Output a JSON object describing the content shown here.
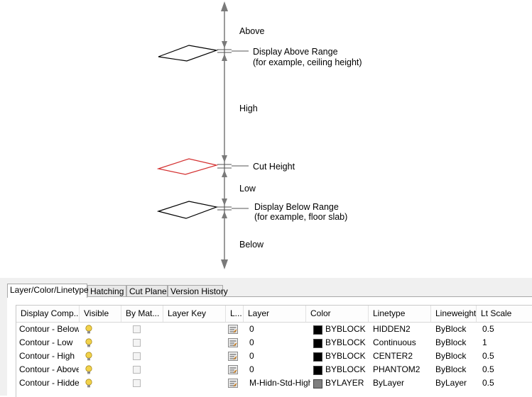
{
  "diagram": {
    "labels": {
      "above": "Above",
      "display_above_range": "Display Above Range",
      "display_above_example": "(for example, ceiling height)",
      "high": "High",
      "cut_height": "Cut Height",
      "low": "Low",
      "display_below_range": "Display Below Range",
      "display_below_example": "(for example, floor slab)",
      "below": "Below"
    },
    "colors": {
      "cut_plane": "#d43030",
      "lines": "#000000",
      "axis": "#7a7a7a"
    }
  },
  "tabs": [
    {
      "label": "Layer/Color/Linetype",
      "active": true
    },
    {
      "label": "Hatching",
      "active": false
    },
    {
      "label": "Cut Plane",
      "active": false
    },
    {
      "label": "Version History",
      "active": false
    }
  ],
  "table": {
    "headers": {
      "display_component": "Display Comp...",
      "visible": "Visible",
      "by_material": "By Mat...",
      "layer_key": "Layer Key",
      "l": "L...",
      "layer": "Layer",
      "color": "Color",
      "linetype": "Linetype",
      "lineweight": "Lineweight",
      "lt_scale": "Lt Scale"
    },
    "rows": [
      {
        "component": "Contour - Below",
        "visible": true,
        "by_material": false,
        "layer_key": "",
        "layer": "0",
        "color_name": "BYBLOCK",
        "color_swatch": "#000000",
        "linetype": "HIDDEN2",
        "lineweight": "ByBlock",
        "lt_scale": "0.5"
      },
      {
        "component": "Contour - Low",
        "visible": true,
        "by_material": false,
        "layer_key": "",
        "layer": "0",
        "color_name": "BYBLOCK",
        "color_swatch": "#000000",
        "linetype": "Continuous",
        "lineweight": "ByBlock",
        "lt_scale": "1"
      },
      {
        "component": "Contour - High",
        "visible": true,
        "by_material": false,
        "layer_key": "",
        "layer": "0",
        "color_name": "BYBLOCK",
        "color_swatch": "#000000",
        "linetype": "CENTER2",
        "lineweight": "ByBlock",
        "lt_scale": "0.5"
      },
      {
        "component": "Contour - Above",
        "visible": true,
        "by_material": false,
        "layer_key": "",
        "layer": "0",
        "color_name": "BYBLOCK",
        "color_swatch": "#000000",
        "linetype": "PHANTOM2",
        "lineweight": "ByBlock",
        "lt_scale": "0.5"
      },
      {
        "component": "Contour - Hidden",
        "visible": true,
        "by_material": false,
        "layer_key": "",
        "layer": "M-Hidn-Std-High",
        "color_name": "BYLAYER",
        "color_swatch": "#7f7f7f",
        "linetype": "ByLayer",
        "lineweight": "ByLayer",
        "lt_scale": "0.5"
      }
    ],
    "icons": {
      "visible": "lightbulb-icon",
      "layer": "layer-properties-icon"
    },
    "bulb_color": "#f2d24a"
  }
}
